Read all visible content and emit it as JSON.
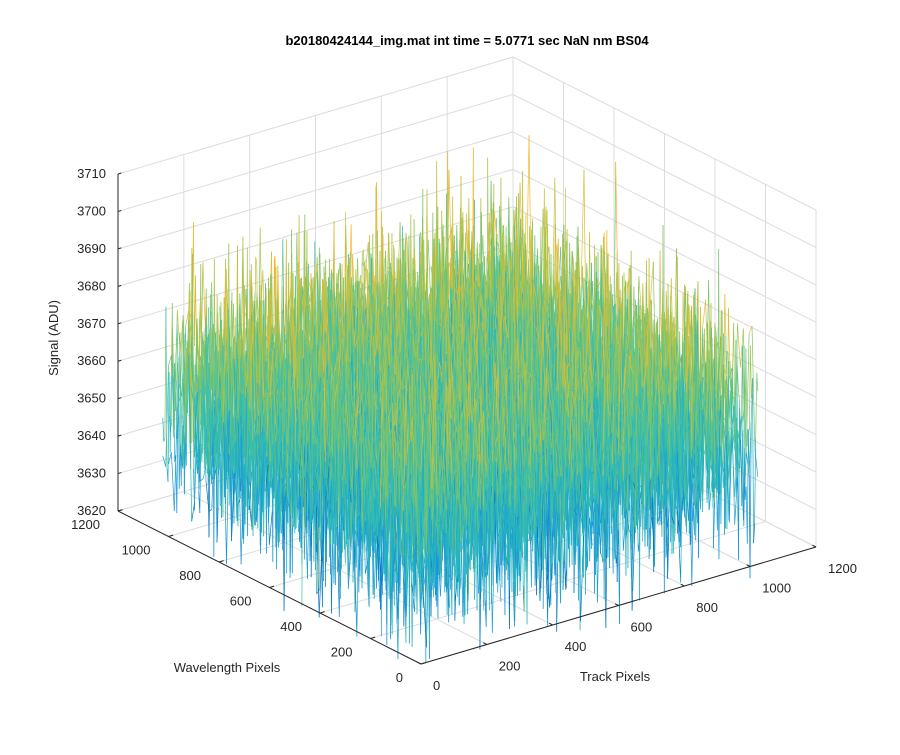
{
  "chart_data": {
    "type": "surface",
    "title": "b20180424144_img.mat int time = 5.0771 sec  NaN nm BS04",
    "xlabel": "Track Pixels",
    "ylabel": "Wavelength Pixels",
    "zlabel": "Signal (ADU)",
    "xlim": [
      0,
      1200
    ],
    "ylim": [
      0,
      1200
    ],
    "zlim": [
      3620,
      3710
    ],
    "xticks": [
      "0",
      "200",
      "400",
      "600",
      "800",
      "1000",
      "1200"
    ],
    "yticks": [
      "0",
      "200",
      "400",
      "600",
      "800",
      "1000",
      "1200"
    ],
    "zticks": [
      "3620",
      "3630",
      "3640",
      "3650",
      "3660",
      "3670",
      "3680",
      "3690",
      "3700",
      "3710"
    ],
    "data_extent": {
      "x": [
        1,
        1024
      ],
      "y": [
        1,
        1024
      ]
    },
    "signal_mean": 3656,
    "signal_spread": 15,
    "signal_range": [
      3615,
      3710
    ],
    "grid": true,
    "colormap": [
      "#0072bd",
      "#1a96d8",
      "#22b0c4",
      "#3fbfa8",
      "#7fc46a",
      "#c3c243",
      "#f5b829"
    ]
  }
}
